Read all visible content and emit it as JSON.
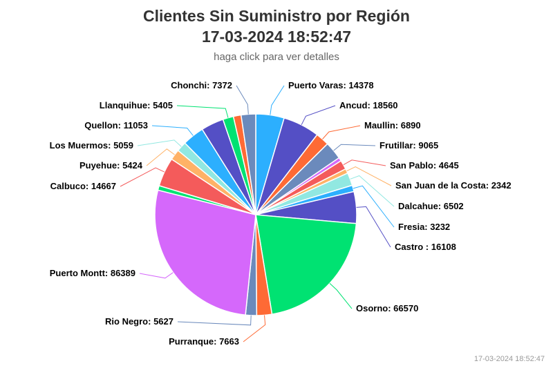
{
  "chart_data": {
    "type": "pie",
    "title_line1": "Clientes Sin Suministro por Región",
    "title_line2": "17-03-2024 18:52:47",
    "subtitle": "haga click para ver detalles",
    "credit": "17-03-2024 18:52:47",
    "slices": [
      {
        "label": "Puerto Varas: 14378",
        "value": 14378,
        "color": "#2caffe"
      },
      {
        "label": "Ancud: 18560",
        "value": 18560,
        "color": "#544fc5"
      },
      {
        "label": "Maullin: 6890",
        "value": 6890,
        "color": "#fe6a35"
      },
      {
        "label": "Frutillar: 9065",
        "value": 9065,
        "color": "#6b8abc"
      },
      {
        "label": "",
        "value": 1800,
        "color": "#d568fb"
      },
      {
        "label": "San Pablo: 4645",
        "value": 4645,
        "color": "#f45b5b"
      },
      {
        "label": "San Juan de la Costa: 2342",
        "value": 2342,
        "color": "#ffb266"
      },
      {
        "label": "Dalcahue: 6502",
        "value": 6502,
        "color": "#91e8e1"
      },
      {
        "label": "Fresia: 3232",
        "value": 3232,
        "color": "#2caffe"
      },
      {
        "label": "Castro : 16108",
        "value": 16108,
        "color": "#544fc5"
      },
      {
        "label": "Osorno: 66570",
        "value": 66570,
        "color": "#00e272"
      },
      {
        "label": "Purranque: 7663",
        "value": 7663,
        "color": "#fe6a35"
      },
      {
        "label": "Rio Negro: 5627",
        "value": 5627,
        "color": "#6b8abc"
      },
      {
        "label": "Puerto Montt: 86389",
        "value": 86389,
        "color": "#d568fb"
      },
      {
        "label": "",
        "value": 2300,
        "color": "#00e272"
      },
      {
        "label": "Calbuco: 14667",
        "value": 14667,
        "color": "#f45b5b"
      },
      {
        "label": "Puyehue: 5424",
        "value": 5424,
        "color": "#ffb266"
      },
      {
        "label": "Los Muermos: 5059",
        "value": 5059,
        "color": "#91e8e1"
      },
      {
        "label": "Quellon: 11053",
        "value": 11053,
        "color": "#2caffe"
      },
      {
        "label": "",
        "value": 11500,
        "color": "#544fc5"
      },
      {
        "label": "Llanquihue: 5405",
        "value": 5405,
        "color": "#00e272"
      },
      {
        "label": "",
        "value": 3900,
        "color": "#fe6a35"
      },
      {
        "label": "Chonchi: 7372",
        "value": 7372,
        "color": "#6b8abc"
      }
    ]
  }
}
